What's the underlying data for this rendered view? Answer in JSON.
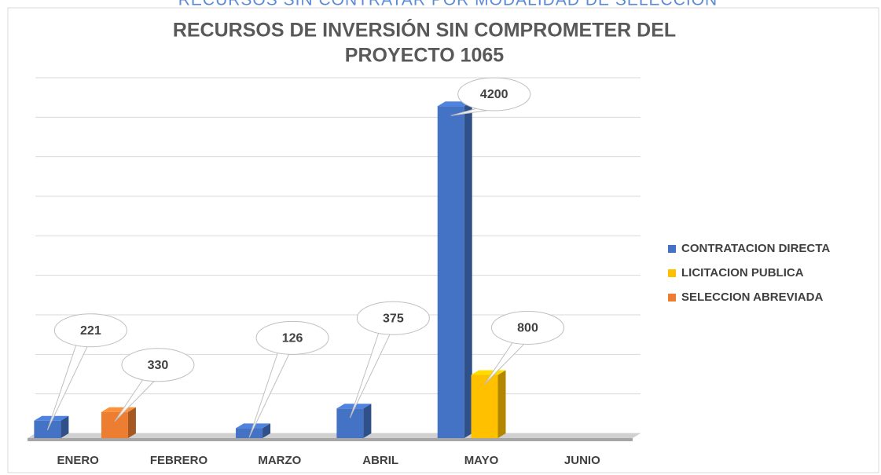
{
  "heading": "RECURSOS SIN CONTRATAR POR MODALIDAD DE SELECCIÓN",
  "chart_data": {
    "type": "bar3d",
    "title": [
      "RECURSOS DE INVERSIÓN SIN COMPROMETER DEL",
      "PROYECTO 1065"
    ],
    "categories": [
      "ENERO",
      "FEBRERO",
      "MARZO",
      "ABRIL",
      "MAYO",
      "JUNIO"
    ],
    "series": [
      {
        "name": "CONTRATACION DIRECTA",
        "color": "#4472c4",
        "values": [
          221,
          null,
          126,
          375,
          4200,
          null
        ]
      },
      {
        "name": "LICITACION PUBLICA",
        "color": "#ffc000",
        "values": [
          null,
          null,
          null,
          null,
          800,
          null
        ]
      },
      {
        "name": "SELECCION ABREVIADA",
        "color": "#ed7d31",
        "values": [
          330,
          null,
          null,
          null,
          null,
          null
        ]
      }
    ],
    "ylim": [
      0,
      4500
    ],
    "yticks": [
      0,
      500,
      1000,
      1500,
      2000,
      2500,
      3000,
      3500,
      4000,
      4500
    ],
    "grid": true,
    "legend": "right"
  }
}
